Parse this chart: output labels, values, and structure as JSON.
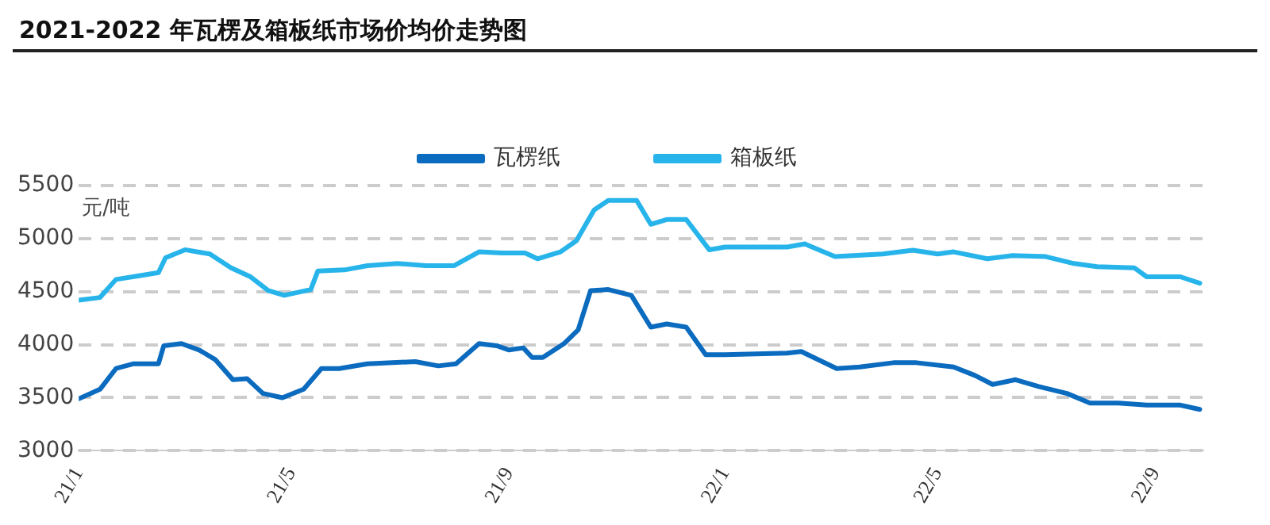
{
  "chart_data": {
    "type": "line",
    "title": "2021-2022 年瓦楞及箱板纸市场价均价走势图",
    "ylabel": "元/吨",
    "xlim": [
      "2021-01-01",
      "2022-09-28"
    ],
    "xticks": [
      {
        "value": "2021-01-01",
        "label": "21/1"
      },
      {
        "value": "2021-05-01",
        "label": "21/5"
      },
      {
        "value": "2021-09-01",
        "label": "21/9"
      },
      {
        "value": "2022-01-01",
        "label": "22/1"
      },
      {
        "value": "2022-05-01",
        "label": "22/5"
      },
      {
        "value": "2022-09-01",
        "label": "22/9"
      }
    ],
    "ylim": [
      3000,
      5500
    ],
    "yticks": [
      3000,
      3500,
      4000,
      4500,
      5000,
      5500
    ],
    "grid": "y",
    "legend": "top",
    "marker": "none",
    "line_style": "solid",
    "series": [
      {
        "name": "瓦楞纸",
        "color": "#0b6bbf",
        "x": [
          "2021-01-01",
          "2021-01-13",
          "2021-01-22",
          "2021-02-01",
          "2021-02-15",
          "2021-02-18",
          "2021-02-28",
          "2021-03-10",
          "2021-03-19",
          "2021-03-29",
          "2021-04-06",
          "2021-04-15",
          "2021-04-26",
          "2021-05-08",
          "2021-05-18",
          "2021-05-28",
          "2021-06-13",
          "2021-07-10",
          "2021-07-23",
          "2021-08-02",
          "2021-08-15",
          "2021-08-25",
          "2021-09-01",
          "2021-09-09",
          "2021-09-14",
          "2021-09-20",
          "2021-10-02",
          "2021-10-10",
          "2021-10-17",
          "2021-10-27",
          "2021-11-09",
          "2021-11-20",
          "2021-11-29",
          "2021-12-10",
          "2021-12-21",
          "2022-01-01",
          "2022-02-05",
          "2022-02-13",
          "2022-03-05",
          "2022-03-18",
          "2022-04-06",
          "2022-04-19",
          "2022-05-10",
          "2022-05-22",
          "2022-06-01",
          "2022-06-14",
          "2022-06-27",
          "2022-07-13",
          "2022-07-26",
          "2022-08-11",
          "2022-08-27",
          "2022-09-15",
          "2022-09-26"
        ],
        "values": [
          3490,
          3580,
          3775,
          3820,
          3820,
          3990,
          4010,
          3950,
          3860,
          3670,
          3680,
          3540,
          3500,
          3580,
          3775,
          3775,
          3820,
          3840,
          3800,
          3820,
          4010,
          3990,
          3950,
          3970,
          3880,
          3880,
          4010,
          4140,
          4510,
          4520,
          4465,
          4165,
          4195,
          4165,
          3905,
          3905,
          3920,
          3935,
          3775,
          3790,
          3830,
          3830,
          3790,
          3710,
          3625,
          3670,
          3605,
          3540,
          3450,
          3450,
          3430,
          3430,
          3390
        ]
      },
      {
        "name": "箱板纸",
        "color": "#27b4ea",
        "x": [
          "2021-01-01",
          "2021-01-13",
          "2021-01-22",
          "2021-02-04",
          "2021-02-15",
          "2021-02-19",
          "2021-03-02",
          "2021-03-16",
          "2021-03-28",
          "2021-04-08",
          "2021-04-18",
          "2021-04-27",
          "2021-05-12",
          "2021-05-16",
          "2021-05-31",
          "2021-06-13",
          "2021-06-30",
          "2021-07-16",
          "2021-08-01",
          "2021-08-15",
          "2021-08-28",
          "2021-09-10",
          "2021-09-17",
          "2021-09-30",
          "2021-10-09",
          "2021-10-19",
          "2021-10-27",
          "2021-11-12",
          "2021-11-20",
          "2021-11-29",
          "2021-12-10",
          "2021-12-23",
          "2022-01-01",
          "2022-02-05",
          "2022-02-15",
          "2022-03-04",
          "2022-03-31",
          "2022-04-17",
          "2022-05-01",
          "2022-05-10",
          "2022-05-29",
          "2022-06-12",
          "2022-07-01",
          "2022-07-17",
          "2022-07-30",
          "2022-08-20",
          "2022-08-27",
          "2022-09-15",
          "2022-09-26"
        ],
        "values": [
          4420,
          4445,
          4615,
          4650,
          4680,
          4820,
          4895,
          4855,
          4725,
          4640,
          4510,
          4465,
          4520,
          4695,
          4705,
          4745,
          4765,
          4745,
          4745,
          4875,
          4865,
          4865,
          4810,
          4875,
          4980,
          5270,
          5360,
          5360,
          5135,
          5180,
          5180,
          4895,
          4920,
          4920,
          4950,
          4830,
          4855,
          4890,
          4855,
          4875,
          4810,
          4840,
          4830,
          4765,
          4735,
          4725,
          4640,
          4640,
          4580
        ]
      }
    ]
  }
}
